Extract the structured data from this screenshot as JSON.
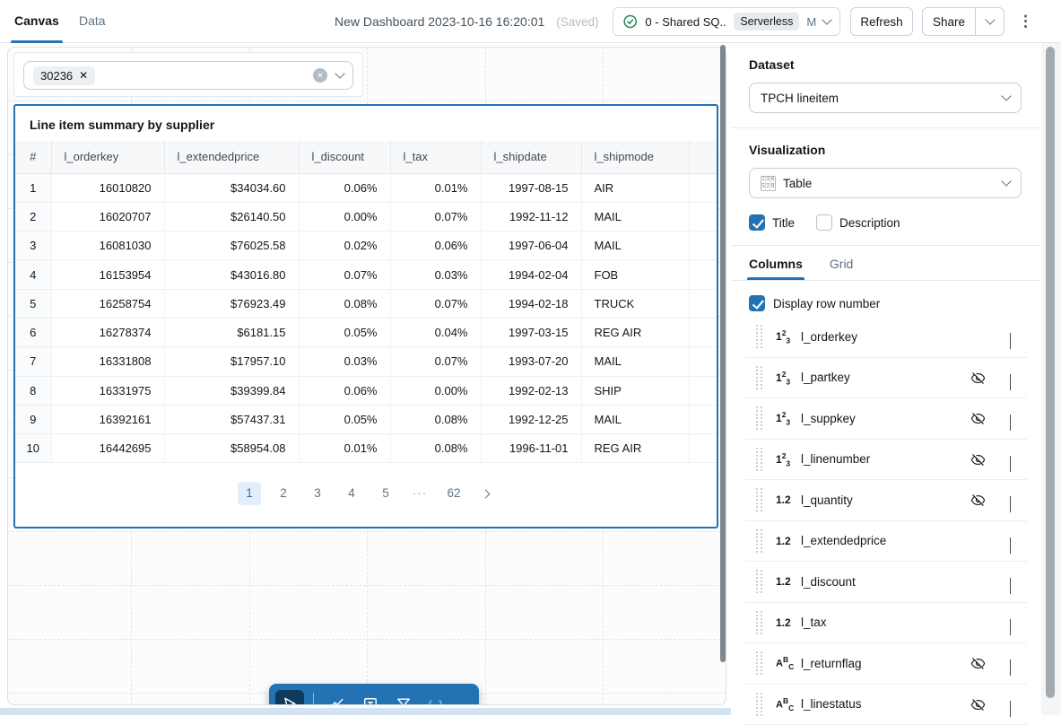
{
  "colors": {
    "accent": "#2272B4",
    "toolbar": "#2272B4",
    "tool_selected": "#0E3A5F",
    "selection_border": "#2272B4",
    "success_green": "#1D8649",
    "active_page_bg": "#E2EEF9"
  },
  "topbar": {
    "tabs": [
      {
        "label": "Canvas",
        "active": true
      },
      {
        "label": "Data",
        "active": false
      }
    ],
    "title": "New Dashboard 2023-10-16 16:20:01",
    "saved_badge": "(Saved)",
    "warehouse": {
      "name": "0 - Shared SQ...",
      "badge": "Serverless",
      "size": "M"
    },
    "refresh_label": "Refresh",
    "share_label": "Share",
    "kebab": "⋮"
  },
  "canvas": {
    "filter_widget": {
      "chip_value": "30236",
      "chip_remove": "✕",
      "clear": "✕"
    },
    "table_widget": {
      "title": "Line item summary by supplier",
      "columns": [
        "#",
        "l_orderkey",
        "l_extendedprice",
        "l_discount",
        "l_tax",
        "l_shipdate",
        "l_shipmode"
      ],
      "rows": [
        [
          "1",
          "16010820",
          "$34034.60",
          "0.06%",
          "0.01%",
          "1997-08-15",
          "AIR"
        ],
        [
          "2",
          "16020707",
          "$26140.50",
          "0.00%",
          "0.07%",
          "1992-11-12",
          "MAIL"
        ],
        [
          "3",
          "16081030",
          "$76025.58",
          "0.02%",
          "0.06%",
          "1997-06-04",
          "MAIL"
        ],
        [
          "4",
          "16153954",
          "$43016.80",
          "0.07%",
          "0.03%",
          "1994-02-04",
          "FOB"
        ],
        [
          "5",
          "16258754",
          "$76923.49",
          "0.08%",
          "0.07%",
          "1994-02-18",
          "TRUCK"
        ],
        [
          "6",
          "16278374",
          "$6181.15",
          "0.05%",
          "0.04%",
          "1997-03-15",
          "REG AIR"
        ],
        [
          "7",
          "16331808",
          "$17957.10",
          "0.03%",
          "0.07%",
          "1993-07-20",
          "MAIL"
        ],
        [
          "8",
          "16331975",
          "$39399.84",
          "0.06%",
          "0.00%",
          "1992-02-13",
          "SHIP"
        ],
        [
          "9",
          "16392161",
          "$57437.31",
          "0.05%",
          "0.08%",
          "1992-12-25",
          "MAIL"
        ],
        [
          "10",
          "16442695",
          "$58954.08",
          "0.01%",
          "0.08%",
          "1996-11-01",
          "REG AIR"
        ]
      ],
      "pagination": {
        "pages": [
          "1",
          "2",
          "3",
          "4",
          "5",
          "···",
          "62"
        ],
        "active": "1"
      }
    },
    "toolbar_tools": [
      {
        "name": "select-tool",
        "active": true
      },
      {
        "name": "chart-tool",
        "active": false
      },
      {
        "name": "text-tool",
        "active": false
      },
      {
        "name": "filter-tool",
        "active": false
      },
      {
        "name": "code-tool",
        "active": false,
        "disabled": true
      }
    ]
  },
  "panel": {
    "dataset": {
      "label": "Dataset",
      "value": "TPCH lineitem"
    },
    "visualization": {
      "label": "Visualization",
      "value": "Table",
      "icon_digits": [
        "1",
        "3",
        "6",
        "5",
        "2",
        "8"
      ]
    },
    "title_checkbox": {
      "label": "Title",
      "checked": true
    },
    "description_checkbox": {
      "label": "Description",
      "checked": false
    },
    "tabs": [
      {
        "label": "Columns",
        "active": true
      },
      {
        "label": "Grid",
        "active": false
      }
    ],
    "display_row_number": {
      "label": "Display row number",
      "checked": true
    },
    "columns": [
      {
        "name": "l_orderkey",
        "type": "integer",
        "hidden": false
      },
      {
        "name": "l_partkey",
        "type": "integer",
        "hidden": true
      },
      {
        "name": "l_suppkey",
        "type": "integer",
        "hidden": true
      },
      {
        "name": "l_linenumber",
        "type": "integer",
        "hidden": true
      },
      {
        "name": "l_quantity",
        "type": "decimal",
        "hidden": true
      },
      {
        "name": "l_extendedprice",
        "type": "decimal",
        "hidden": false
      },
      {
        "name": "l_discount",
        "type": "decimal",
        "hidden": false
      },
      {
        "name": "l_tax",
        "type": "decimal",
        "hidden": false
      },
      {
        "name": "l_returnflag",
        "type": "string",
        "hidden": true
      },
      {
        "name": "l_linestatus",
        "type": "string",
        "hidden": true
      }
    ]
  }
}
